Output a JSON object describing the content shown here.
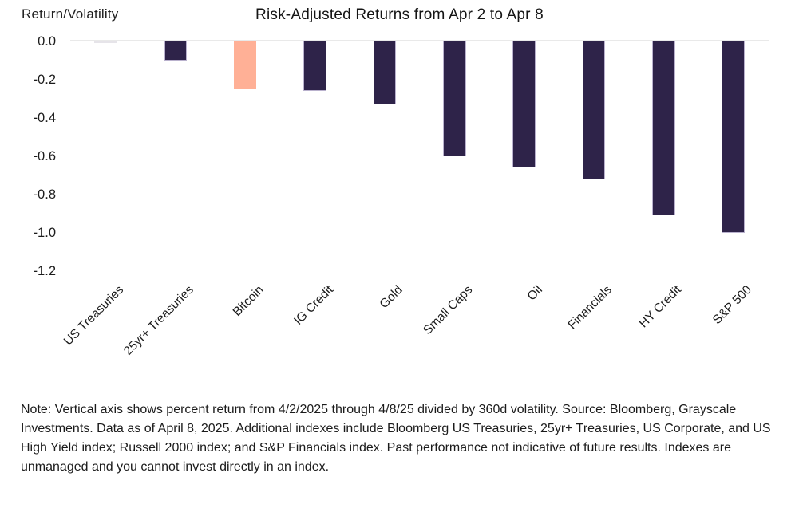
{
  "chart_data": {
    "type": "bar",
    "title": "Risk-Adjusted Returns from Apr 2 to Apr 8",
    "ylabel": "Return/Volatility",
    "xlabel": "",
    "categories": [
      "US Treasuries",
      "25yr+ Treasuries",
      "Bitcoin",
      "IG Credit",
      "Gold",
      "Small Caps",
      "Oil",
      "Financials",
      "HY Credit",
      "S&P 500"
    ],
    "values": [
      -0.01,
      -0.1,
      -0.25,
      -0.26,
      -0.33,
      -0.6,
      -0.66,
      -0.72,
      -0.91,
      -1.0
    ],
    "bar_colors": [
      "#e6e4e9",
      "#2e2349",
      "#ffb096",
      "#2e2349",
      "#2e2349",
      "#2e2349",
      "#2e2349",
      "#2e2349",
      "#2e2349",
      "#2e2349"
    ],
    "highlighted_category": "Bitcoin",
    "y_ticks": [
      "0.0",
      "-0.2",
      "-0.4",
      "-0.6",
      "-0.8",
      "-1.0",
      "-1.2"
    ],
    "ylim": [
      -1.2,
      0.0
    ],
    "grid": "zero-line-only",
    "legend": "none",
    "colors": {
      "default_bar": "#2e2349",
      "bar_border": "#b9b1cd",
      "highlight_bar": "#ffb096",
      "near_zero_bar": "#e6e4e9",
      "zero_line": "#e9e9e9",
      "text": "#1b1b1b"
    }
  },
  "note": {
    "text": "Note: Vertical axis shows percent return from 4/2/2025 through 4/8/25 divided by 360d volatility. Source: Bloomberg, Grayscale Investments. Data as of April 8, 2025. Additional indexes include Bloomberg US Treasuries, 25yr+ Treasuries, US Corporate, and US High Yield index; Russell 2000 index; and S&P Financials index. Past performance not indicative of future results. Indexes are unmanaged and you cannot invest directly in an index."
  }
}
